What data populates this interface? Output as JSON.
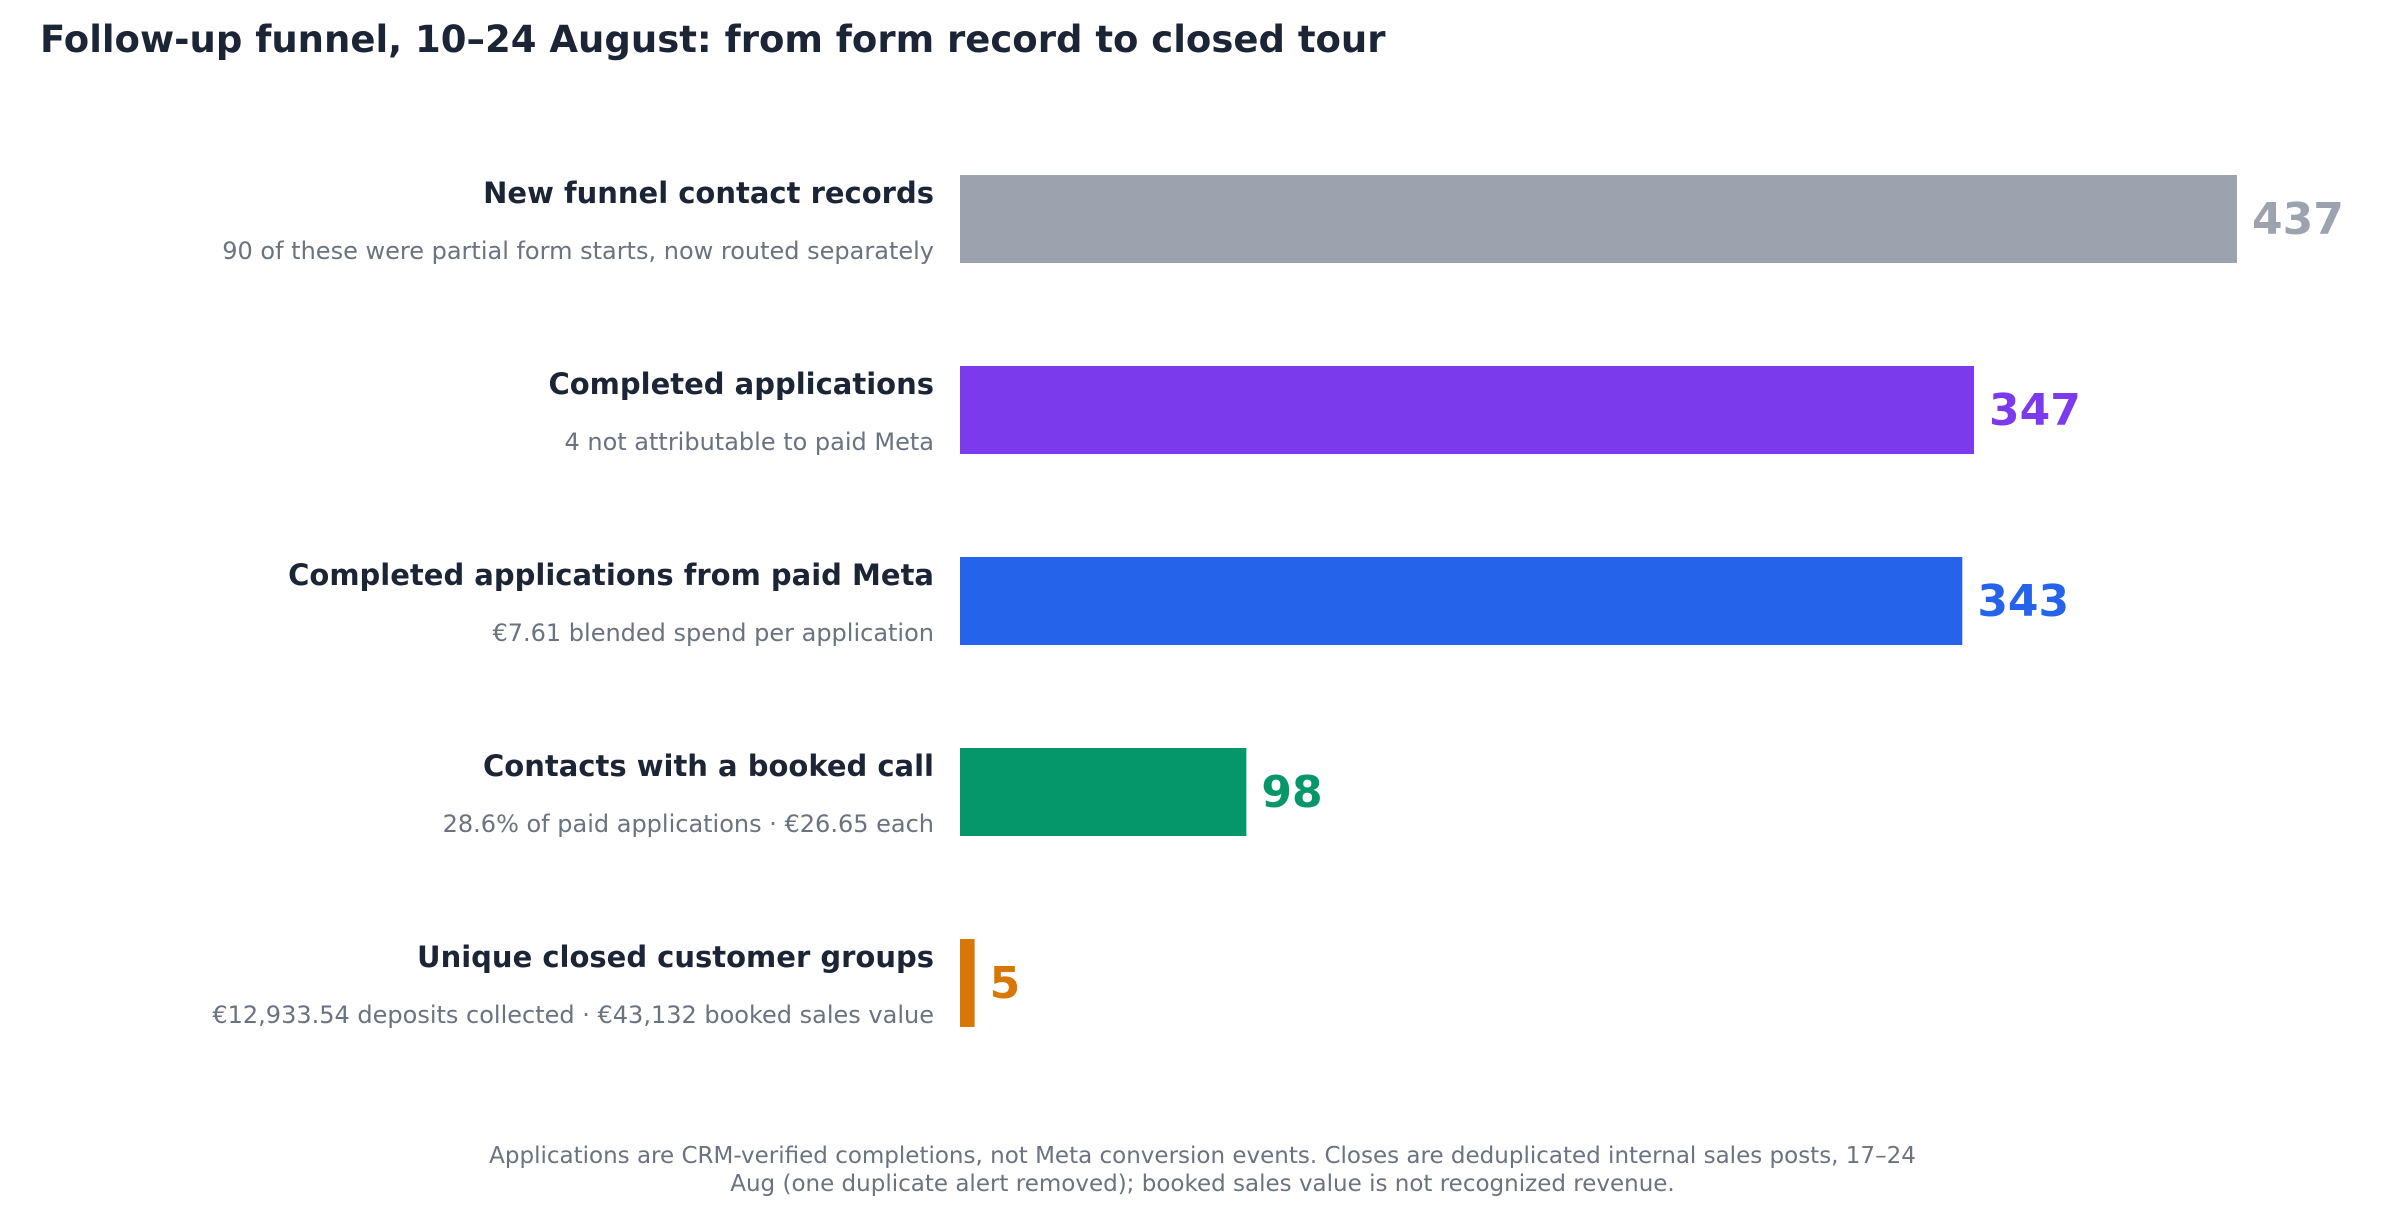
{
  "title": "Follow-up funnel, 10–24 August: from form record to closed tour",
  "footnote": "Applications are CRM-verified completions, not Meta conversion events. Closes are deduplicated internal sales posts, 17–24 Aug (one duplicate alert removed); booked sales value is not recognized revenue.",
  "chart_data": {
    "type": "bar",
    "orientation": "horizontal",
    "grid": false,
    "categories": [
      "New funnel contact records",
      "Completed applications",
      "Completed applications from paid Meta",
      "Contacts with a booked call",
      "Unique closed customer groups"
    ],
    "subtitles": [
      "90 of these were partial form starts, now routed separately",
      "4 not attributable to paid Meta",
      "€7.61 blended spend per application",
      "28.6% of paid applications · €26.65 each",
      "€12,933.54 deposits collected · €43,132 booked sales value"
    ],
    "values": [
      437,
      347,
      343,
      98,
      5
    ],
    "value_labels": [
      "437",
      "347",
      "343",
      "98",
      "5"
    ],
    "colors": [
      "#9ca3af",
      "#7c3aed",
      "#2563eb",
      "#059669",
      "#d97706"
    ],
    "xlim": [
      0,
      437
    ]
  }
}
